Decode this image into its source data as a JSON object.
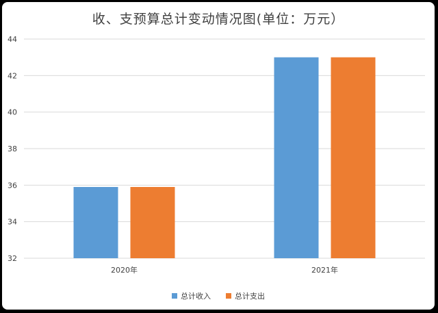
{
  "chart_data": {
    "type": "bar",
    "title": "收、支预算总计变动情况图(单位：万元）",
    "categories": [
      "2020年",
      "2021年"
    ],
    "series": [
      {
        "name": "总计收入",
        "values": [
          35.9,
          43
        ],
        "color": "#5b9bd5"
      },
      {
        "name": "总计支出",
        "values": [
          35.9,
          43
        ],
        "color": "#ed7d31"
      }
    ],
    "ylim": [
      32,
      44
    ],
    "yticks": [
      32,
      34,
      36,
      38,
      40,
      42,
      44
    ],
    "grid": true,
    "legend_position": "bottom",
    "xlabel": "",
    "ylabel": ""
  }
}
